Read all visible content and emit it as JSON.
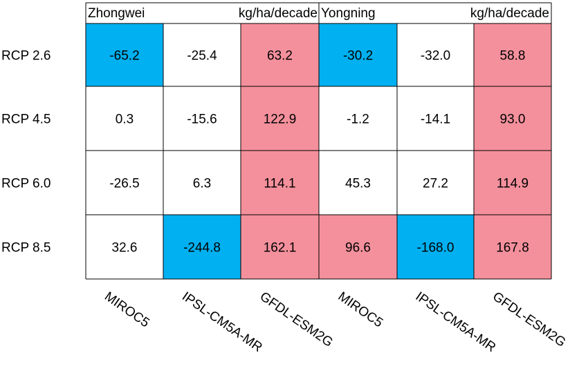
{
  "chart_data": {
    "type": "heatmap",
    "panels": [
      {
        "name": "Zhongwei",
        "unit": "kg/ha/decade"
      },
      {
        "name": "Yongning",
        "unit": "kg/ha/decade"
      }
    ],
    "columns": [
      "MIROC5",
      "IPSL-CM5A-MR",
      "GFDL-ESM2G",
      "MIROC5",
      "IPSL-CM5A-MR",
      "GFDL-ESM2G"
    ],
    "rows": [
      "RCP 2.6",
      "RCP 4.5",
      "RCP 6.0",
      "RCP 8.5"
    ],
    "values": [
      [
        "-65.2",
        "-25.4",
        "63.2",
        "-30.2",
        "-32.0",
        "58.8"
      ],
      [
        "0.3",
        "-15.6",
        "122.9",
        "-1.2",
        "-14.1",
        "93.0"
      ],
      [
        "-26.5",
        "6.3",
        "114.1",
        "45.3",
        "27.2",
        "114.9"
      ],
      [
        "32.6",
        "-244.8",
        "162.1",
        "96.6",
        "-168.0",
        "167.8"
      ]
    ],
    "cell_colors": [
      [
        "blue",
        "white",
        "pink",
        "blue",
        "white",
        "pink"
      ],
      [
        "white",
        "white",
        "pink",
        "white",
        "white",
        "pink"
      ],
      [
        "white",
        "white",
        "pink",
        "white",
        "white",
        "pink"
      ],
      [
        "white",
        "blue",
        "pink",
        "pink",
        "blue",
        "pink"
      ]
    ],
    "palette": {
      "blue": "#00b0f0",
      "pink": "#f4909c",
      "white": "#ffffff",
      "border": "#000000"
    }
  }
}
